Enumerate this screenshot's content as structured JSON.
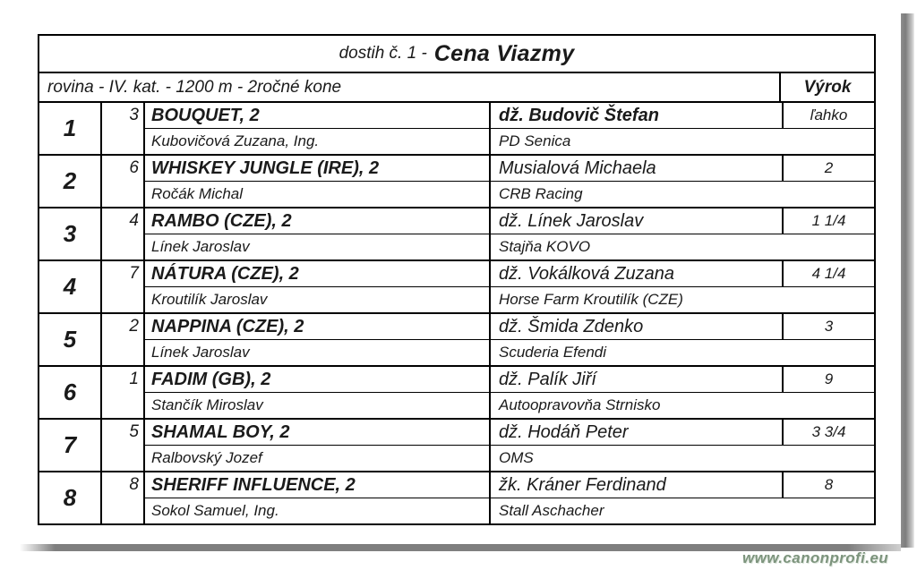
{
  "header": {
    "title_prefix": "dostih č. 1 -",
    "title": "Cena Viazmy",
    "conditions": "rovina - IV. kat. - 1200 m - 2ročné kone",
    "verdict_header": "Výrok"
  },
  "colors": {
    "text": "#1a1a1a",
    "border": "#000000",
    "watermark_green": "#7d947d",
    "shadow_gray": "#7f7f7f"
  },
  "watermark": "www.canonprofi.eu",
  "rows": [
    {
      "pos": "1",
      "num": "3",
      "horse": "BOUQUET, 2",
      "trainer": "Kubovičová Zuzana, Ing.",
      "jockey": "dž. Budovič Štefan",
      "jockey_bold": true,
      "stable": "PD Senica",
      "verdict": "ľahko"
    },
    {
      "pos": "2",
      "num": "6",
      "horse": "WHISKEY JUNGLE (IRE), 2",
      "trainer": "Ročák Michal",
      "jockey": "Musialová Michaela",
      "jockey_bold": false,
      "stable": "CRB Racing",
      "verdict": "2"
    },
    {
      "pos": "3",
      "num": "4",
      "horse": "RAMBO (CZE), 2",
      "trainer": "Línek Jaroslav",
      "jockey": "dž. Línek Jaroslav",
      "jockey_bold": false,
      "stable": "Stajňa KOVO",
      "verdict": "1 1/4"
    },
    {
      "pos": "4",
      "num": "7",
      "horse": "NÁTURA (CZE), 2",
      "trainer": "Kroutilík Jaroslav",
      "jockey": "dž. Vokálková Zuzana",
      "jockey_bold": false,
      "stable": "Horse Farm Kroutilík (CZE)",
      "verdict": "4 1/4"
    },
    {
      "pos": "5",
      "num": "2",
      "horse": "NAPPINA (CZE), 2",
      "trainer": "Línek Jaroslav",
      "jockey": "dž. Šmida Zdenko",
      "jockey_bold": false,
      "stable": "Scuderia Efendi",
      "verdict": "3"
    },
    {
      "pos": "6",
      "num": "1",
      "horse": "FADIM (GB), 2",
      "trainer": "Stančík Miroslav",
      "jockey": "dž. Palík Jiří",
      "jockey_bold": false,
      "stable": "Autoopravovňa Strnisko",
      "verdict": "9"
    },
    {
      "pos": "7",
      "num": "5",
      "horse": "SHAMAL BOY, 2",
      "trainer": "Ralbovský Jozef",
      "jockey": "dž. Hodáň Peter",
      "jockey_bold": false,
      "stable": "OMS",
      "verdict": "3 3/4"
    },
    {
      "pos": "8",
      "num": "8",
      "horse": "SHERIFF INFLUENCE, 2",
      "trainer": "Sokol Samuel, Ing.",
      "jockey": "žk. Kráner Ferdinand",
      "jockey_bold": false,
      "stable": "Stall Aschacher",
      "verdict": "8"
    }
  ]
}
